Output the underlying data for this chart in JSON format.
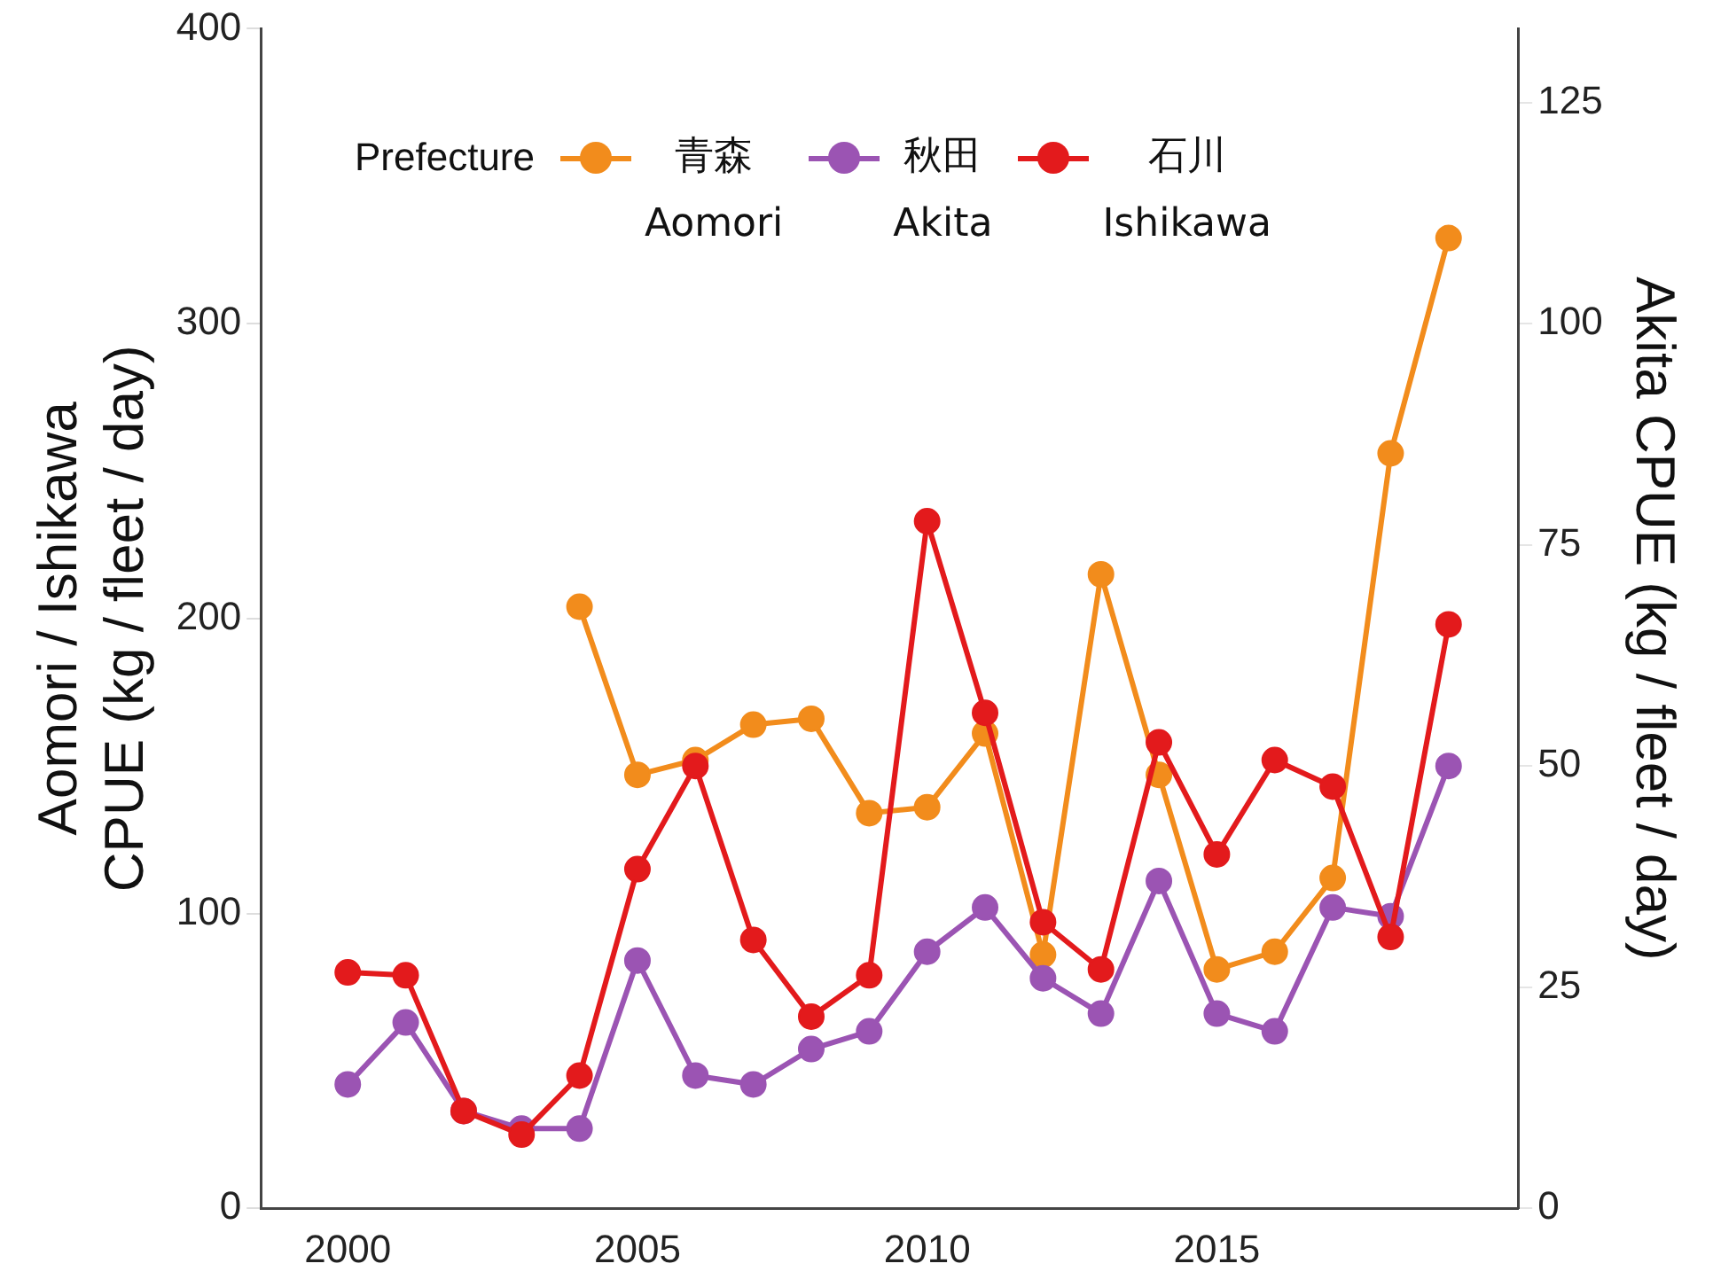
{
  "chart_data": {
    "type": "line",
    "ylabel": "Aomori / Ishikawa\nCPUE (kg / fleet / day)",
    "y2label": "Akita CPUE (kg / fleet / day)",
    "legend_title": "Prefecture",
    "legend": "top left",
    "grid": false,
    "marker": "circle",
    "line_style": "solid",
    "xlim": [
      1998.5,
      2020.2
    ],
    "xticks": [
      2000,
      2005,
      2010,
      2015
    ],
    "ylim": [
      0,
      400
    ],
    "yticks": [
      0,
      100,
      200,
      300,
      400
    ],
    "y2lim": [
      0,
      133.33
    ],
    "y2ticks": [
      0,
      25,
      50,
      75,
      100,
      125
    ],
    "series": [
      {
        "name": "青森\nAomori",
        "color": "#f28c1c",
        "x": [
          2004,
          2005,
          2006,
          2007,
          2008,
          2009,
          2010,
          2011,
          2012,
          2013,
          2014,
          2015,
          2016,
          2017,
          2018,
          2019
        ],
        "values": [
          204,
          147,
          152,
          164,
          166,
          134,
          136,
          161,
          86,
          215,
          147,
          81,
          87,
          112,
          256,
          329
        ]
      },
      {
        "name": "秋田\nAkita",
        "color": "#9b54b3",
        "axis": "y2",
        "x": [
          2000,
          2001,
          2002,
          2003,
          2004,
          2005,
          2006,
          2007,
          2008,
          2009,
          2010,
          2011,
          2012,
          2013,
          2014,
          2015,
          2016,
          2017,
          2018,
          2019
        ],
        "values": [
          14,
          21,
          11,
          9,
          9,
          28,
          15,
          14,
          18,
          20,
          29,
          34,
          26,
          22,
          37,
          22,
          20,
          34,
          33,
          50
        ]
      },
      {
        "name": "石川\nIshikawa",
        "color": "#e31a1c",
        "x": [
          2000,
          2001,
          2002,
          2003,
          2004,
          2005,
          2006,
          2007,
          2008,
          2009,
          2010,
          2011,
          2012,
          2013,
          2014,
          2015,
          2016,
          2017,
          2018,
          2019
        ],
        "values": [
          80,
          79,
          33,
          25,
          45,
          115,
          150,
          91,
          65,
          79,
          233,
          168,
          97,
          81,
          158,
          120,
          152,
          143,
          92,
          198
        ]
      }
    ]
  }
}
